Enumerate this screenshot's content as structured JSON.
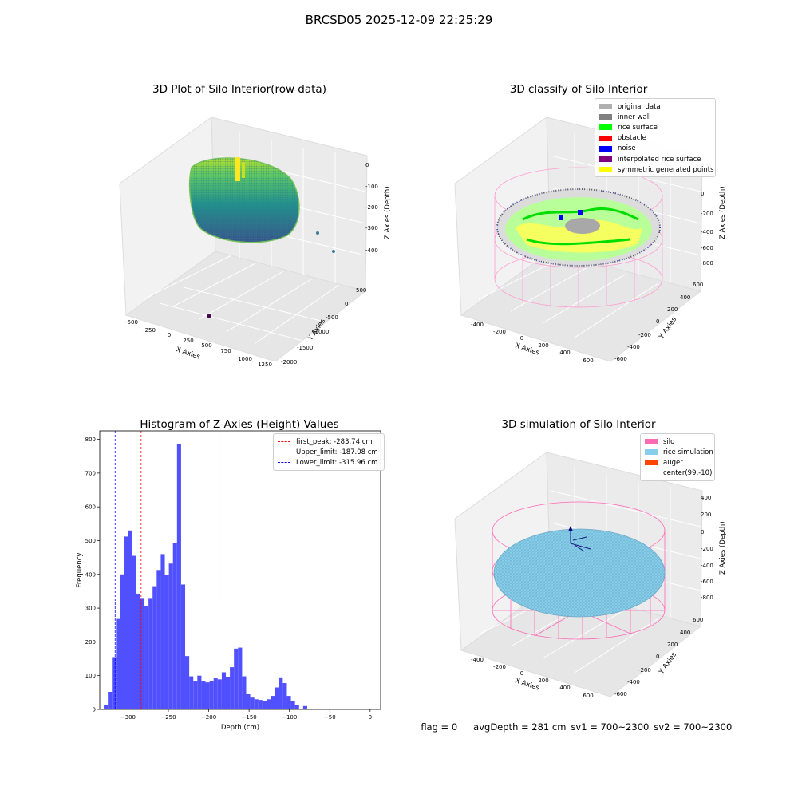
{
  "suptitle": "BRCSD05 2025-12-09 22:25:29",
  "panels": {
    "raw": {
      "title": "3D Plot of Silo Interior(row data)",
      "xlabel": "X Axies",
      "ylabel": "Y Axies",
      "zlabel": "Z Axies (Depth)",
      "xticks": [
        "-500",
        "-250",
        "0",
        "250",
        "500",
        "750",
        "1000",
        "1250"
      ],
      "yticks": [
        "-2000",
        "-1500",
        "-1000",
        "-500",
        "0",
        "500"
      ],
      "zticks": [
        "0",
        "-100",
        "-200",
        "-300",
        "-400"
      ]
    },
    "classify": {
      "title": "3D classify of Silo Interior",
      "xlabel": "X Axies",
      "ylabel": "Y Axies",
      "zlabel": "Z Axies (Depth)",
      "xticks": [
        "-400",
        "-200",
        "0",
        "200",
        "400",
        "600"
      ],
      "yticks": [
        "-600",
        "-400",
        "-200",
        "0",
        "200",
        "400",
        "600"
      ],
      "zticks": [
        "200",
        "0",
        "-200",
        "-400",
        "-600",
        "-800"
      ],
      "legend": [
        {
          "label": "original data",
          "color": "#b0b0b0"
        },
        {
          "label": "inner wall",
          "color": "#808080"
        },
        {
          "label": "rice surface",
          "color": "#00ff00"
        },
        {
          "label": "obstacle",
          "color": "#ff0000"
        },
        {
          "label": "noise",
          "color": "#0000ff"
        },
        {
          "label": "interpolated rice surface",
          "color": "#800080"
        },
        {
          "label": "symmetric generated points",
          "color": "#ffff00"
        }
      ]
    },
    "simulation": {
      "title": "3D simulation of Silo Interior",
      "xlabel": "X Axies",
      "ylabel": "Y Axies",
      "zlabel": "Z Axies (Depth)",
      "xticks": [
        "-400",
        "-200",
        "0",
        "200",
        "400",
        "600"
      ],
      "yticks": [
        "-600",
        "-400",
        "-200",
        "0",
        "200",
        "400",
        "600"
      ],
      "zticks": [
        "400",
        "200",
        "0",
        "-200",
        "-400",
        "-600",
        "-800"
      ],
      "legend": [
        {
          "label": "silo",
          "color": "#ff69b4"
        },
        {
          "label": "rice simulation",
          "color": "#87ceeb"
        },
        {
          "label": "auger",
          "color": "#ff4500"
        },
        {
          "label": "center(99,-10)",
          "color": "#ffffff"
        }
      ]
    }
  },
  "chart_data": {
    "type": "bar",
    "title": "Histogram of Z-Axies (Height) Values",
    "xlabel": "Depth (cm)",
    "ylabel": "Frequency",
    "xlim": [
      -335,
      13
    ],
    "ylim": [
      0,
      825
    ],
    "xticks": [
      -300,
      -250,
      -200,
      -150,
      -100,
      -50,
      0
    ],
    "yticks": [
      0,
      100,
      200,
      300,
      400,
      500,
      600,
      700,
      800
    ],
    "bin_start": -330,
    "bin_width": 5.04,
    "values": [
      12,
      52,
      155,
      268,
      400,
      512,
      530,
      455,
      343,
      330,
      305,
      330,
      365,
      413,
      460,
      398,
      432,
      493,
      785,
      370,
      158,
      98,
      83,
      100,
      85,
      80,
      85,
      92,
      89,
      110,
      97,
      125,
      180,
      183,
      98,
      45,
      35,
      30,
      28,
      25,
      30,
      40,
      65,
      95,
      78,
      40,
      25,
      12,
      2,
      10
    ],
    "bar_color": "#5050ff",
    "vlines": [
      {
        "label": "first_peak: -283.74 cm",
        "x": -283.74,
        "color": "#ff0000"
      },
      {
        "label": "Upper_limit: -187.08 cm",
        "x": -187.08,
        "color": "#0000ff"
      },
      {
        "label": "Lower_limit: -315.96 cm",
        "x": -315.96,
        "color": "#0000ff"
      }
    ]
  },
  "status": {
    "flag": "flag = 0",
    "avg_depth": "avgDepth = 281 cm",
    "sv1": "sv1 = 700~2300",
    "sv2": "sv2 = 700~2300"
  }
}
